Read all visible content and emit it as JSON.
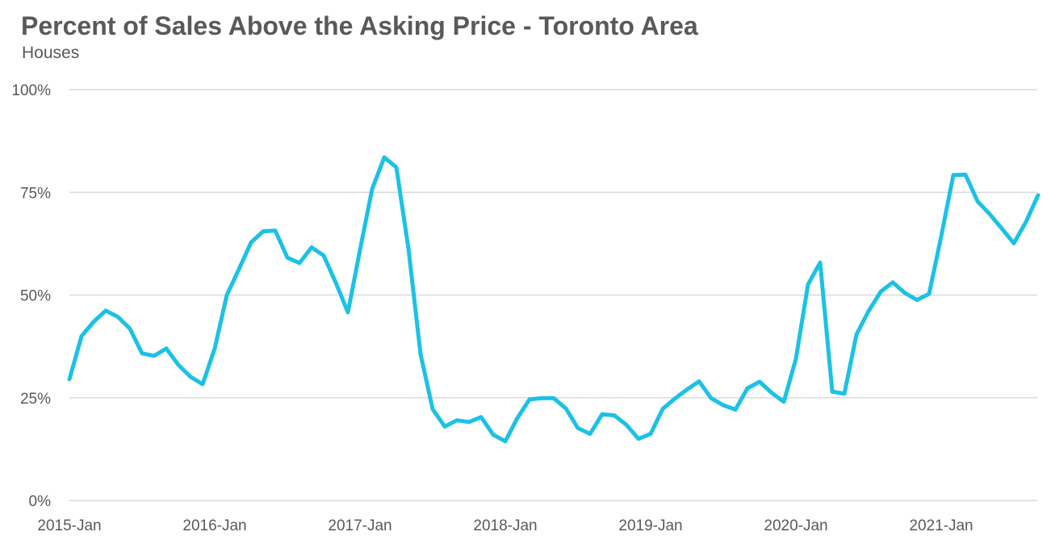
{
  "chart_data": {
    "type": "line",
    "title": "Percent of Sales Above the Asking Price - Toronto Area",
    "subtitle": "Houses",
    "xlabel": "",
    "ylabel": "",
    "ylim": [
      0,
      100
    ],
    "y_ticks": [
      "0%",
      "25%",
      "50%",
      "75%",
      "100%"
    ],
    "x_ticks": [
      "2015-Jan",
      "2016-Jan",
      "2017-Jan",
      "2018-Jan",
      "2019-Jan",
      "2020-Jan",
      "2021-Jan"
    ],
    "grid": true,
    "legend": "none",
    "line_color": "#1cc1e6",
    "grid_color": "#d9d9d9",
    "x": [
      "2015-01",
      "2015-02",
      "2015-03",
      "2015-04",
      "2015-05",
      "2015-06",
      "2015-07",
      "2015-08",
      "2015-09",
      "2015-10",
      "2015-11",
      "2015-12",
      "2016-01",
      "2016-02",
      "2016-03",
      "2016-04",
      "2016-05",
      "2016-06",
      "2016-07",
      "2016-08",
      "2016-09",
      "2016-10",
      "2016-11",
      "2016-12",
      "2017-01",
      "2017-02",
      "2017-03",
      "2017-04",
      "2017-05",
      "2017-06",
      "2017-07",
      "2017-08",
      "2017-09",
      "2017-10",
      "2017-11",
      "2017-12",
      "2018-01",
      "2018-02",
      "2018-03",
      "2018-04",
      "2018-05",
      "2018-06",
      "2018-07",
      "2018-08",
      "2018-09",
      "2018-10",
      "2018-11",
      "2018-12",
      "2019-01",
      "2019-02",
      "2019-03",
      "2019-04",
      "2019-05",
      "2019-06",
      "2019-07",
      "2019-08",
      "2019-09",
      "2019-10",
      "2019-11",
      "2019-12",
      "2020-01",
      "2020-02",
      "2020-03",
      "2020-04",
      "2020-05",
      "2020-06",
      "2020-07",
      "2020-08",
      "2020-09",
      "2020-10",
      "2020-11",
      "2020-12",
      "2021-01",
      "2021-02",
      "2021-03",
      "2021-04",
      "2021-05",
      "2021-06",
      "2021-07",
      "2021-08",
      "2021-09"
    ],
    "series": [
      {
        "values": [
          29.5,
          40.0,
          43.5,
          46.2,
          44.7,
          41.8,
          35.8,
          35.2,
          37.0,
          33.0,
          30.1,
          28.3,
          37.0,
          50.0,
          56.3,
          62.8,
          65.5,
          65.7,
          59.1,
          57.8,
          61.6,
          59.6,
          53.0,
          45.8,
          61.0,
          75.8,
          83.5,
          81.1,
          61.3,
          35.6,
          22.2,
          18.0,
          19.5,
          19.1,
          20.3,
          16.0,
          14.4,
          20.1,
          24.6,
          24.9,
          24.9,
          22.4,
          17.6,
          16.2,
          21.0,
          20.7,
          18.4,
          15.0,
          16.2,
          22.3,
          24.8,
          27.0,
          29.0,
          24.9,
          23.2,
          22.1,
          27.3,
          28.9,
          26.2,
          24.0,
          34.5,
          52.6,
          57.9,
          26.5,
          26.0,
          40.4,
          46.1,
          50.8,
          53.1,
          50.5,
          48.8,
          50.3,
          64.3,
          79.2,
          79.3,
          72.8,
          69.7,
          66.2,
          62.6,
          67.8,
          74.3
        ]
      }
    ]
  }
}
